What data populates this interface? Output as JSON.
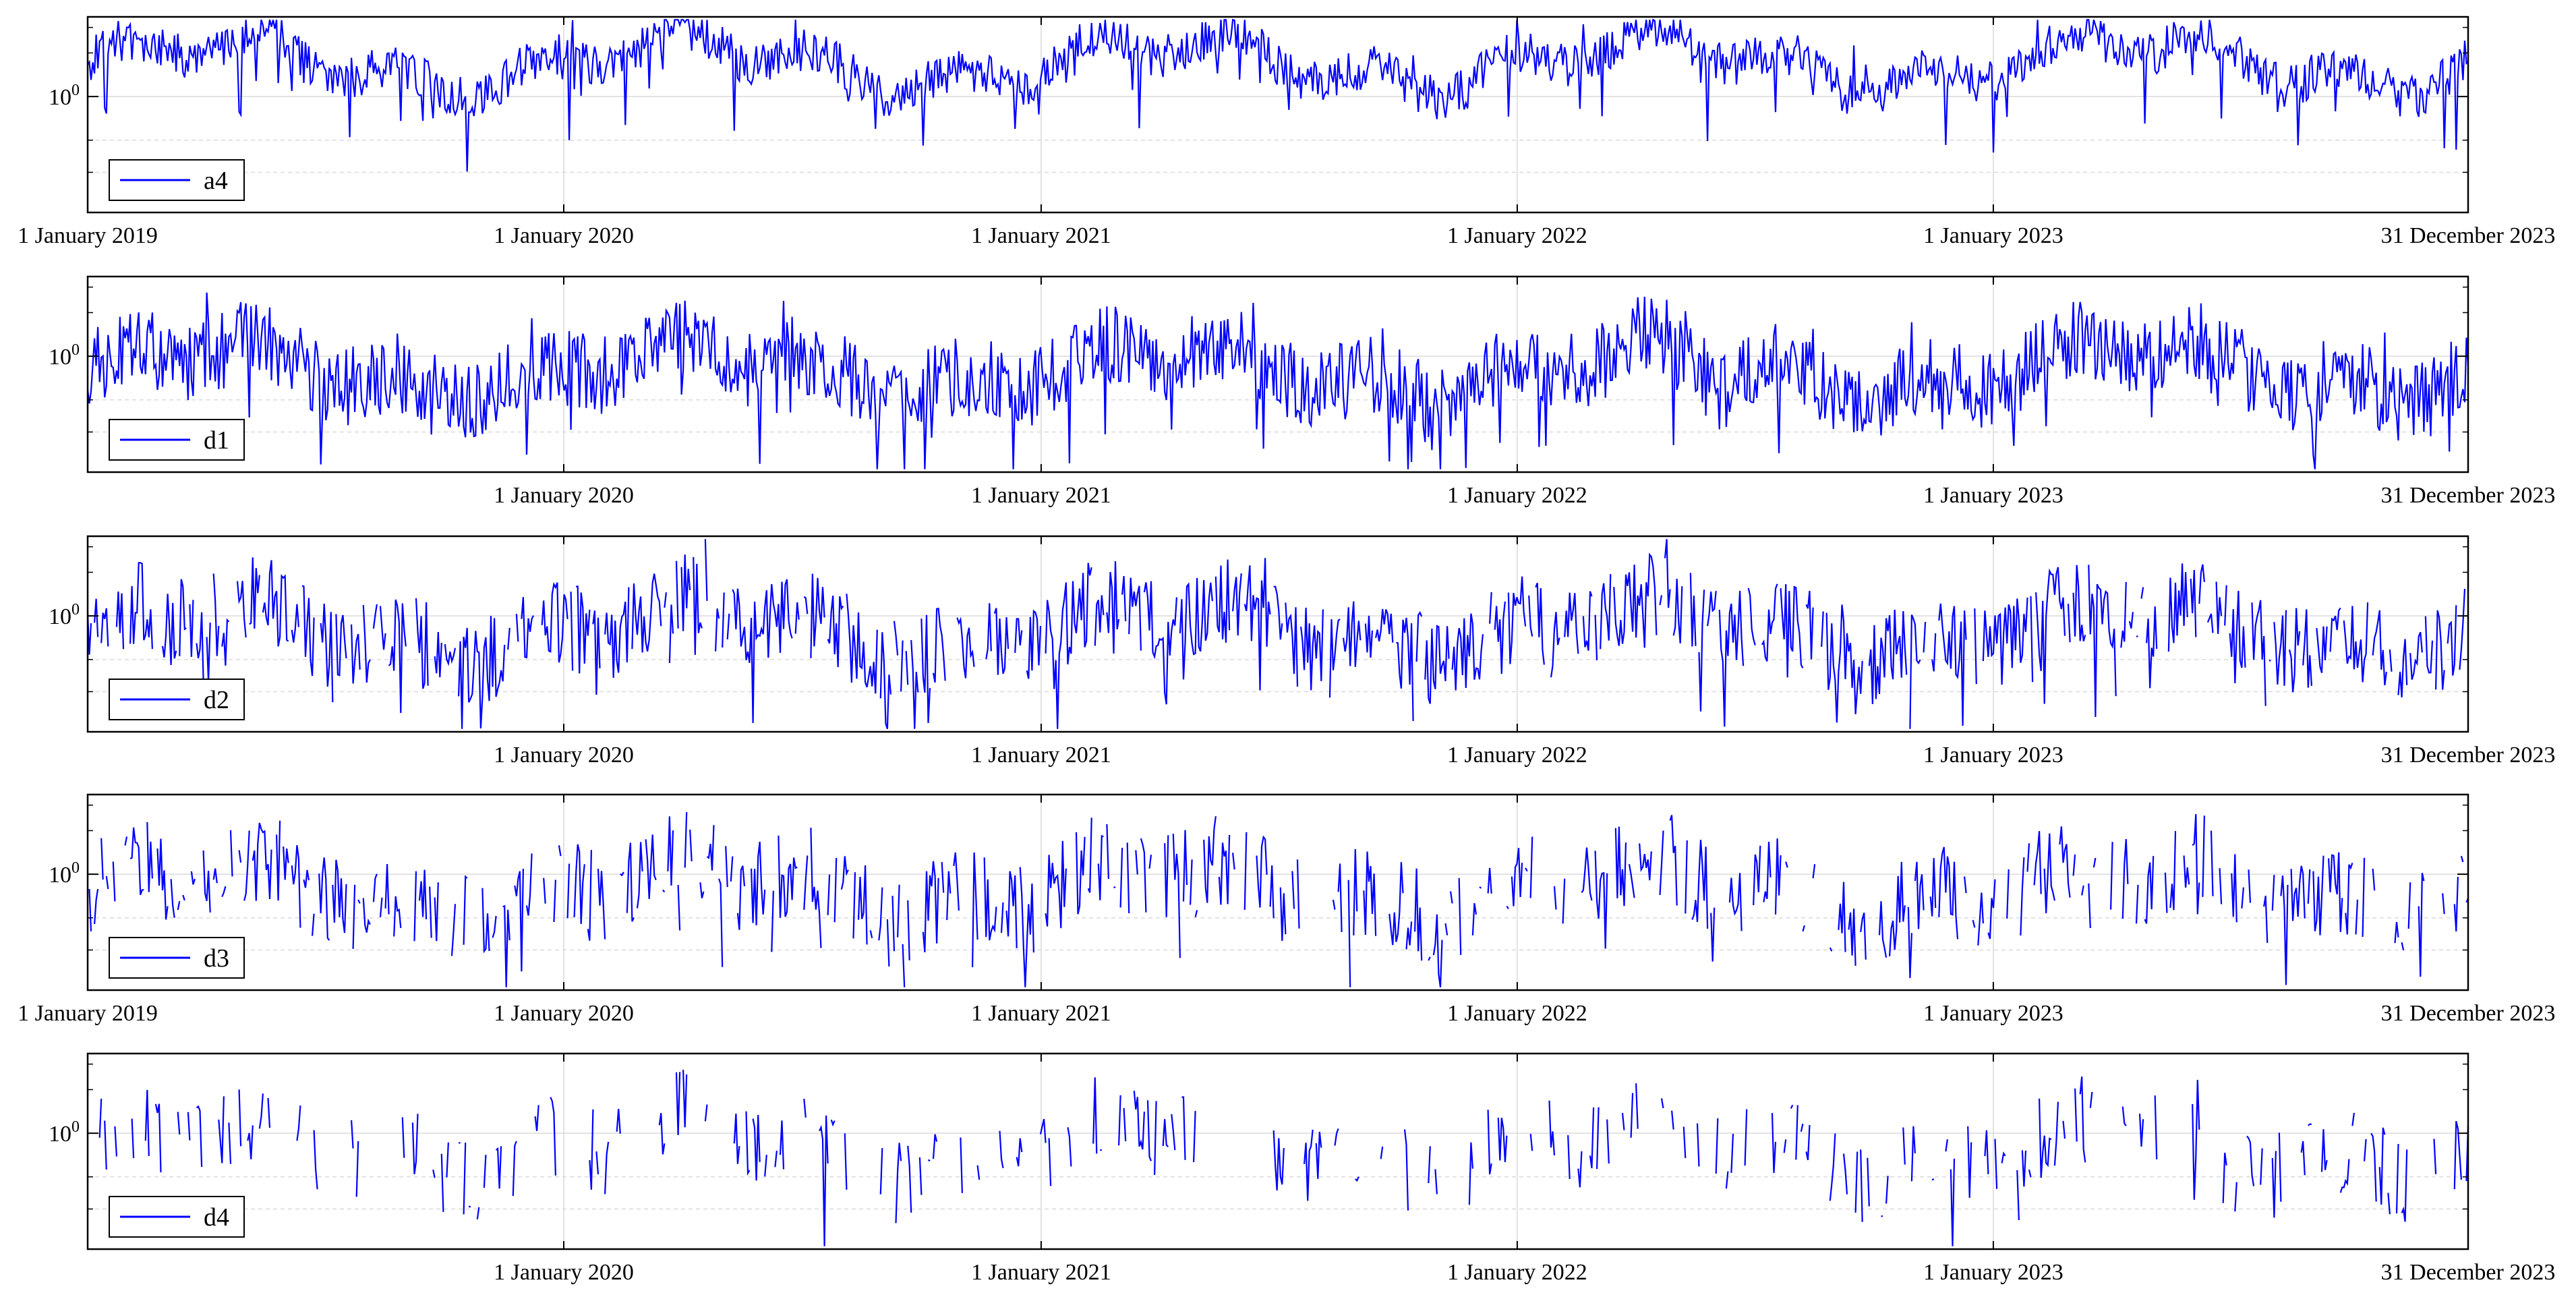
{
  "chart_data": [
    {
      "type": "line",
      "xlim": [
        "1 January 2019",
        "31 December 2023"
      ],
      "yscale": "log",
      "yticks": [
        1
      ],
      "ytick_labels": [
        "10^0"
      ],
      "xticks": [
        "1 January 2019",
        "1 January 2020",
        "1 January 2021",
        "1 January 2022",
        "1 January 2023",
        "31 December 2023"
      ],
      "xtick_labels": [
        "1 January 2019",
        "1 January 2020",
        "1 January 2021",
        "1 January 2022",
        "1 January 2023",
        "31 December 2023"
      ],
      "grid": true,
      "legend_position": "bottom-left",
      "series": [
        {
          "name": "a4",
          "baseline": 1.7,
          "spread": 0.3,
          "sparsity": 0
        }
      ]
    },
    {
      "type": "line",
      "xlim": [
        "1 January 2019",
        "31 December 2023"
      ],
      "yscale": "log",
      "yticks": [
        1
      ],
      "ytick_labels": [
        "10^0"
      ],
      "xticks": [
        "1 January 2020",
        "1 January 2021",
        "1 January 2022",
        "1 January 2023",
        "31 December 2023"
      ],
      "xtick_labels": [
        "1 January 2020",
        "1 January 2021",
        "1 January 2022",
        "1 January 2023",
        "31 December 2023"
      ],
      "grid": true,
      "legend_position": "bottom-left",
      "series": [
        {
          "name": "d1",
          "baseline": 0.8,
          "spread": 0.55,
          "sparsity": 0
        }
      ]
    },
    {
      "type": "line",
      "xlim": [
        "1 January 2019",
        "31 December 2023"
      ],
      "yscale": "log",
      "yticks": [
        1
      ],
      "ytick_labels": [
        "10^0"
      ],
      "xticks": [
        "1 January 2020",
        "1 January 2021",
        "1 January 2022",
        "1 January 2023",
        "31 December 2023"
      ],
      "xtick_labels": [
        "1 January 2020",
        "1 January 2021",
        "1 January 2022",
        "1 January 2023",
        "31 December 2023"
      ],
      "grid": true,
      "legend_position": "bottom-left",
      "series": [
        {
          "name": "d2",
          "baseline": 0.8,
          "spread": 0.6,
          "sparsity": 0.15
        }
      ]
    },
    {
      "type": "line",
      "xlim": [
        "1 January 2019",
        "31 December 2023"
      ],
      "yscale": "log",
      "yticks": [
        1
      ],
      "ytick_labels": [
        "10^0"
      ],
      "xticks": [
        "1 January 2019",
        "1 January 2020",
        "1 January 2021",
        "1 January 2022",
        "1 January 2023",
        "31 December 2023"
      ],
      "xtick_labels": [
        "1 January 2019",
        "1 January 2020",
        "1 January 2021",
        "1 January 2022",
        "1 January 2023",
        "31 December 2023"
      ],
      "grid": true,
      "legend_position": "bottom-left",
      "series": [
        {
          "name": "d3",
          "baseline": 0.8,
          "spread": 0.65,
          "sparsity": 0.35
        }
      ]
    },
    {
      "type": "line",
      "xlim": [
        "1 January 2019",
        "31 December 2023"
      ],
      "yscale": "log",
      "yticks": [
        1
      ],
      "ytick_labels": [
        "10^0"
      ],
      "xticks": [
        "1 January 2020",
        "1 January 2021",
        "1 January 2022",
        "1 January 2023",
        "31 December 2023"
      ],
      "xtick_labels": [
        "1 January 2020",
        "1 January 2021",
        "1 January 2022",
        "1 January 2023",
        "31 December 2023"
      ],
      "grid": true,
      "legend_position": "bottom-left",
      "series": [
        {
          "name": "d4",
          "baseline": 0.8,
          "spread": 0.6,
          "sparsity": 0.55
        }
      ]
    }
  ],
  "style": {
    "line_color": "#0000ff",
    "grid_color": "#d9d9d9",
    "axis_color": "#000000"
  }
}
